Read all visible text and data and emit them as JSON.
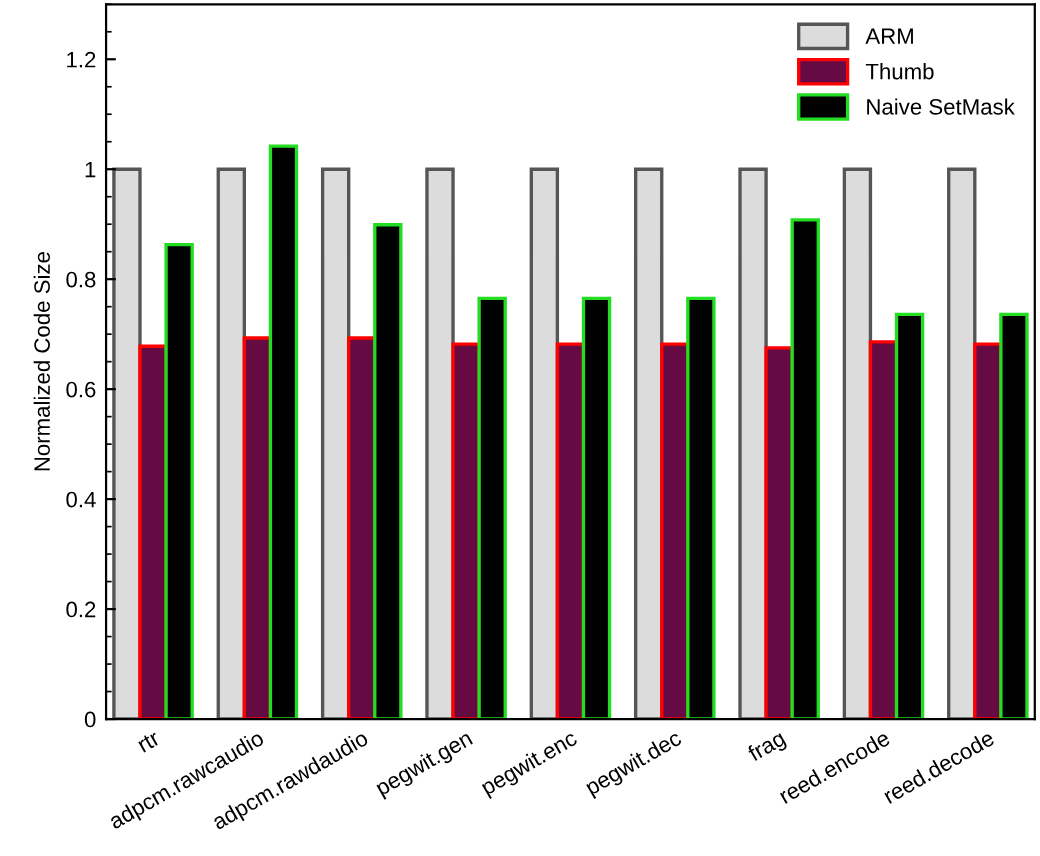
{
  "chart_data": {
    "type": "bar",
    "ylabel": "Normalized Code Size",
    "categories": [
      "rtr",
      "adpcm.rawcaudio",
      "adpcm.rawdaudio",
      "pegwit.gen",
      "pegwit.enc",
      "pegwit.dec",
      "frag",
      "reed.encode",
      "reed.decode"
    ],
    "series": [
      {
        "name": "ARM",
        "color": "#dcdcdc",
        "values": [
          1,
          1,
          1,
          1,
          1,
          1,
          1,
          1,
          1
        ]
      },
      {
        "name": "Thumb",
        "color": "#660a44",
        "values": [
          0.678,
          0.693,
          0.693,
          0.682,
          0.682,
          0.682,
          0.675,
          0.686,
          0.682
        ]
      },
      {
        "name": "Naive SetMask",
        "color": "#000000",
        "values": [
          0.863,
          1.042,
          0.899,
          0.765,
          0.765,
          0.765,
          0.908,
          0.736,
          0.736
        ]
      }
    ],
    "ylim": [
      0,
      1.3
    ],
    "yticks": [
      0,
      0.2,
      0.4,
      0.6,
      0.8,
      1,
      1.2
    ],
    "grid": false,
    "legend": "top right"
  }
}
